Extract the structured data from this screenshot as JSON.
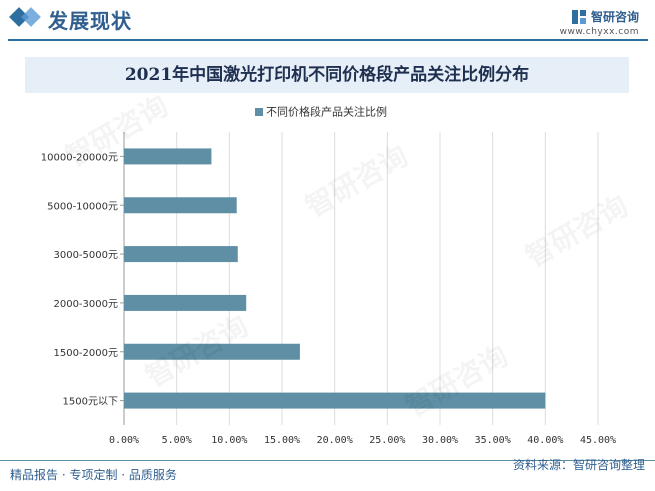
{
  "header": {
    "title": "发展现状",
    "brand_name": "智研咨询",
    "brand_url": "www.chyxx.com"
  },
  "footer": {
    "left": "精品报告 · 专项定制 · 品质服务",
    "source": "资料来源：智研咨询整理"
  },
  "colors": {
    "bar": "#5e8fa4",
    "accent": "#2f6f9f",
    "title_band": "#e6eef7"
  },
  "chart_data": {
    "type": "bar",
    "orientation": "horizontal",
    "title": "2021年中国激光打印机不同价格段产品关注比例分布",
    "categories": [
      "10000-20000元",
      "5000-10000元",
      "3000-5000元",
      "2000-3000元",
      "1500-2000元",
      "1500元以下"
    ],
    "series": [
      {
        "name": "不同价格段产品关注比例",
        "values": [
          8.3,
          10.7,
          10.8,
          11.6,
          16.7,
          40.0
        ]
      }
    ],
    "x_ticks": [
      "0.00%",
      "5.00%",
      "10.00%",
      "15.00%",
      "20.00%",
      "25.00%",
      "30.00%",
      "35.00%",
      "40.00%",
      "45.00%"
    ],
    "xlim": [
      0,
      45
    ],
    "grid": "vertical",
    "legend_position": "top"
  }
}
